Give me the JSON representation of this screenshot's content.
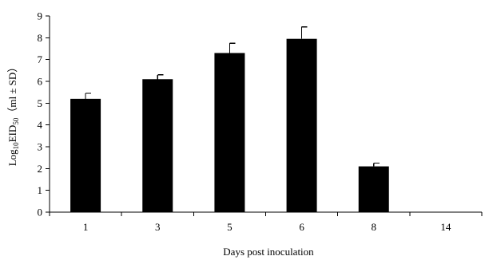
{
  "chart_data": {
    "type": "bar",
    "categories": [
      "1",
      "3",
      "5",
      "6",
      "8",
      "14"
    ],
    "values": [
      5.2,
      6.1,
      7.3,
      7.95,
      2.1,
      0
    ],
    "errors": [
      0.25,
      0.2,
      0.45,
      0.55,
      0.15,
      0
    ],
    "title": "",
    "xlabel": "Days post inoculation",
    "ylabel": {
      "prefix": "Log",
      "prefix_sub": "10",
      "main": "EID",
      "main_sub": "50",
      "suffix": "（ml ± SD）"
    },
    "ylim": [
      0,
      9
    ],
    "yticks": [
      "0",
      "1",
      "2",
      "3",
      "4",
      "5",
      "6",
      "7",
      "8",
      "9"
    ],
    "bar_color": "#000000",
    "grid": false
  }
}
